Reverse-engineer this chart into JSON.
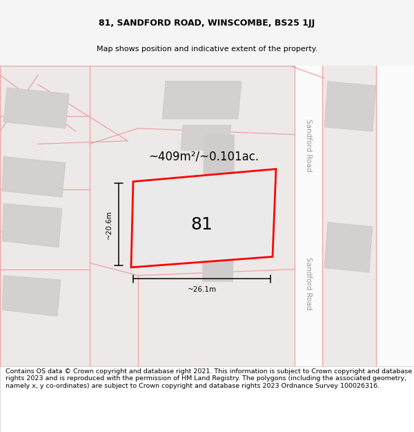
{
  "title": "81, SANDFORD ROAD, WINSCOMBE, BS25 1JJ",
  "subtitle": "Map shows position and indicative extent of the property.",
  "footer_text": "Contains OS data © Crown copyright and database right 2021. This information is subject to Crown copyright and database rights 2023 and is reproduced with the permission of HM Land Registry. The polygons (including the associated geometry, namely x, y co-ordinates) are subject to Crown copyright and database rights 2023 Ordnance Survey 100026316.",
  "area_label": "~409m²/~0.101ac.",
  "number_label": "81",
  "dim_width_label": "~26.1m",
  "dim_height_label": "~20.6m",
  "road_label_top": "Sandford Road",
  "road_label_bot": "Sandford Road",
  "bg_color": "#f5f5f5",
  "map_bg": "#ede9e9",
  "road_line_color": "#f0a0a0",
  "title_fontsize": 9,
  "subtitle_fontsize": 8,
  "footer_fontsize": 6.8
}
